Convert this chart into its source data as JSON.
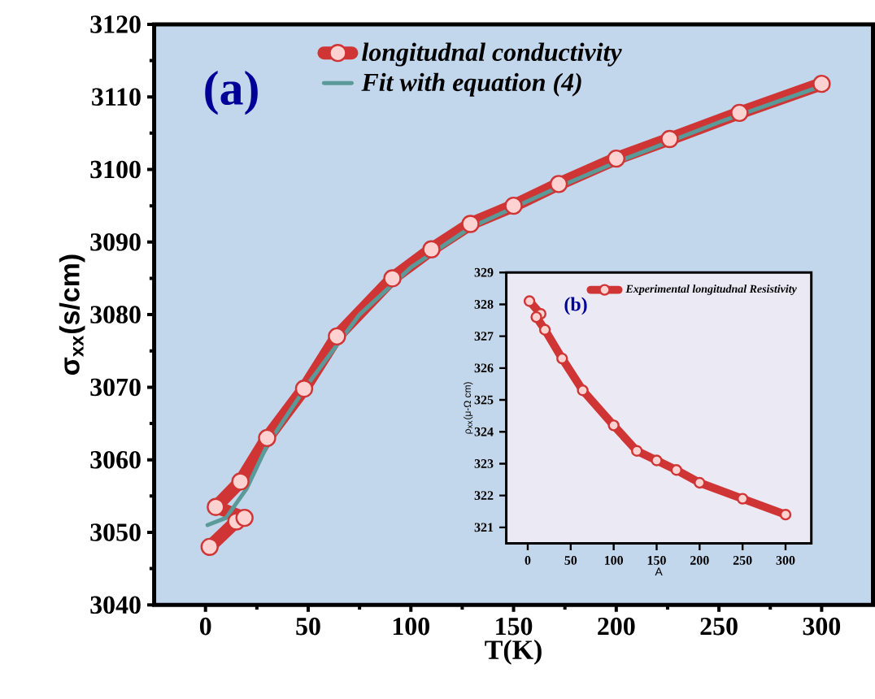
{
  "chart_data": [
    {
      "type": "line",
      "xlabel": "T(K)",
      "ylabel": "σ$_{xx}$(s/cm)",
      "annotations": [
        "(a)"
      ],
      "xlim": [
        -25,
        325
      ],
      "ylim": [
        3040,
        3120
      ],
      "xticks": [
        0,
        50,
        100,
        150,
        200,
        250,
        300
      ],
      "yticks": [
        3040,
        3050,
        3060,
        3070,
        3080,
        3090,
        3100,
        3110,
        3120
      ],
      "legend": "top left",
      "series": [
        {
          "name": "longitudnal conductivity",
          "color": "#d03535",
          "marker": "circle",
          "x": [
            2,
            15,
            19,
            5,
            17,
            30,
            48,
            64,
            91,
            110,
            129,
            150,
            172,
            200,
            226,
            260,
            300
          ],
          "values": [
            3048,
            3051.5,
            3052,
            3053.5,
            3057,
            3063,
            3069.8,
            3077,
            3085,
            3089,
            3092.5,
            3095,
            3098,
            3101.5,
            3104.2,
            3107.8,
            3111.8
          ]
        },
        {
          "name": "Fit with equation (4)",
          "color": "#5a9a98",
          "marker": "none",
          "x": [
            1,
            10,
            20,
            30,
            50,
            75,
            100,
            129,
            172,
            200,
            250,
            300
          ],
          "values": [
            3051,
            3052,
            3056,
            3062,
            3070.5,
            3080,
            3086.5,
            3092,
            3097.6,
            3101,
            3106.5,
            3111.5
          ]
        }
      ]
    },
    {
      "type": "line",
      "xlabel": "A",
      "ylabel": "ρ$_{xx}$(μ-Ω cm)",
      "annotations": [
        "(b)"
      ],
      "xlim": [
        -25,
        330
      ],
      "ylim": [
        320.5,
        329
      ],
      "xticks": [
        0,
        50,
        100,
        150,
        200,
        250,
        300
      ],
      "yticks": [
        321,
        322,
        323,
        324,
        325,
        326,
        327,
        328,
        329
      ],
      "legend": "top right",
      "series": [
        {
          "name": "Experimental longitudnal Resistivity",
          "color": "#d03535",
          "marker": "circle",
          "x": [
            2,
            15,
            10,
            20,
            40,
            64,
            100,
            127,
            150,
            173,
            200,
            250,
            300
          ],
          "values": [
            328.1,
            327.7,
            327.6,
            327.2,
            326.3,
            325.3,
            324.2,
            323.4,
            323.1,
            322.8,
            322.4,
            321.9,
            321.4
          ]
        }
      ]
    }
  ]
}
